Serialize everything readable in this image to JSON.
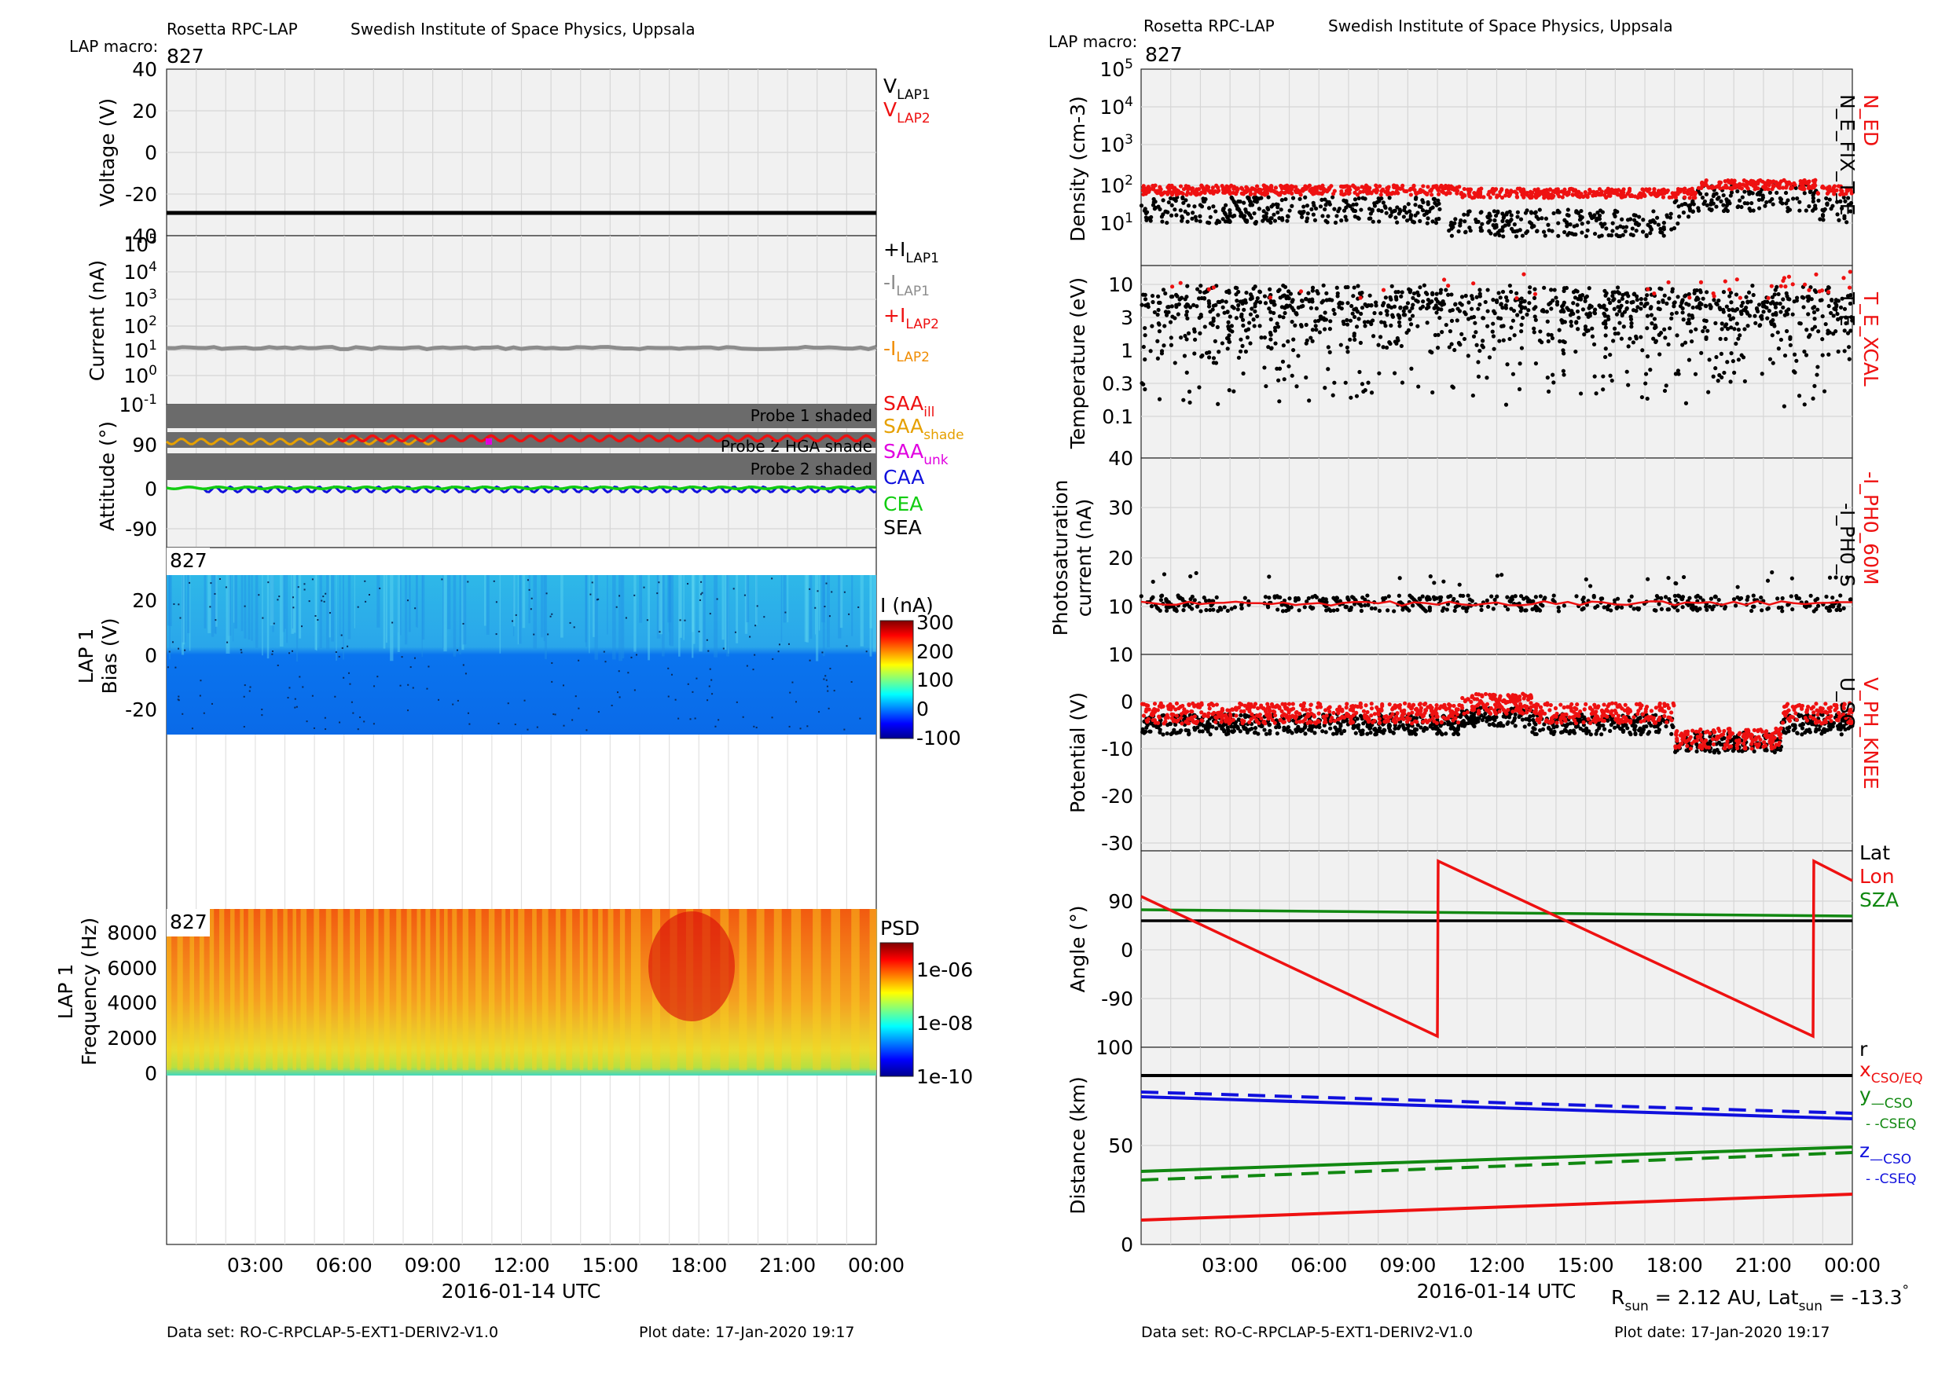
{
  "left": {
    "header": {
      "title": "Rosetta RPC-LAP",
      "institute": "Swedish Institute of Space Physics, Uppsala",
      "macro_label": "LAP macro:",
      "macro_value": "827"
    },
    "x_ticks": [
      "03:00",
      "06:00",
      "09:00",
      "12:00",
      "15:00",
      "18:00",
      "21:00",
      "00:00"
    ],
    "x_label": "2016-01-14 UTC",
    "footer": {
      "dataset": "Data set: RO-C-RPCLAP-5-EXT1-DERIV2-V1.0",
      "plotdate": "Plot date: 17-Jan-2020 19:17"
    },
    "voltage": {
      "ylabel": "Voltage (V)",
      "ticks": [
        "40",
        "20",
        "0",
        "-20",
        "-40"
      ],
      "legend": [
        {
          "base": "V",
          "sub": "LAP1",
          "color": "#000000"
        },
        {
          "base": "V",
          "sub": "LAP2",
          "color": "#ee1111"
        }
      ],
      "value": -30
    },
    "current": {
      "ylabel": "Current (nA)",
      "ticks": [
        {
          "b": "10",
          "e": "5"
        },
        {
          "b": "10",
          "e": "4"
        },
        {
          "b": "10",
          "e": "3"
        },
        {
          "b": "10",
          "e": "2"
        },
        {
          "b": "10",
          "e": "1"
        },
        {
          "b": "10",
          "e": "0"
        },
        {
          "b": "10",
          "e": "-1"
        }
      ],
      "legend": [
        {
          "base": "+I",
          "sub": "LAP1",
          "color": "#000000"
        },
        {
          "base": "-I",
          "sub": "LAP1",
          "color": "#8c8c8c"
        },
        {
          "base": "+I",
          "sub": "LAP2",
          "color": "#ee1111"
        },
        {
          "base": "-I",
          "sub": "LAP2",
          "color": "#f08c00"
        }
      ],
      "value": 10
    },
    "attitude": {
      "ylabel": "Attitude (°)",
      "ticks": [
        "90",
        "0",
        "-90"
      ],
      "bands": [
        "Probe 1 shaded",
        "Probe 2 HGA shade",
        "Probe 2 shaded"
      ],
      "legend": [
        {
          "base": "SAA",
          "sub": "ill",
          "color": "#ee1111"
        },
        {
          "base": "SAA",
          "sub": "shade",
          "color": "#e6a000"
        },
        {
          "base": "SAA",
          "sub": "unk",
          "color": "#e000e0"
        },
        {
          "base": "CAA",
          "sub": "",
          "color": "#1010dd"
        },
        {
          "base": "CEA",
          "sub": "",
          "color": "#11cc11"
        },
        {
          "base": "SEA",
          "sub": "",
          "color": "#000000"
        }
      ]
    },
    "bias": {
      "macro": "827",
      "ylabel1": "LAP 1",
      "ylabel2": "Bias (V)",
      "ticks": [
        "20",
        "0",
        "-20"
      ],
      "cbar_title": "I (nA)",
      "cbar_ticks": [
        "300",
        "200",
        "100",
        "0",
        "-100"
      ]
    },
    "freq": {
      "macro": "827",
      "ylabel1": "LAP 1",
      "ylabel2": "Frequency (Hz)",
      "ticks": [
        "8000",
        "6000",
        "4000",
        "2000",
        "0"
      ],
      "cbar_title": "PSD",
      "cbar_ticks": [
        "1e-06",
        "1e-08",
        "1e-10"
      ]
    }
  },
  "right": {
    "header": {
      "title": "Rosetta RPC-LAP",
      "institute": "Swedish Institute of Space Physics, Uppsala",
      "macro_label": "LAP macro:",
      "macro_value": "827"
    },
    "x_ticks": [
      "03:00",
      "06:00",
      "09:00",
      "12:00",
      "15:00",
      "18:00",
      "21:00",
      "00:00"
    ],
    "x_label": "2016-01-14 UTC",
    "rsun": {
      "r": "R",
      "rsub": "sun",
      "rval": " = 2.12 AU, Lat",
      "lsub": "sun",
      "lval": " = -13.3",
      "deg": "°"
    },
    "footer": {
      "dataset": "Data set: RO-C-RPCLAP-5-EXT1-DERIV2-V1.0",
      "plotdate": "Plot date: 17-Jan-2020 19:17"
    },
    "density": {
      "ylabel": "Density (cm-3)",
      "ticks": [
        {
          "b": "10",
          "e": "5"
        },
        {
          "b": "10",
          "e": "4"
        },
        {
          "b": "10",
          "e": "3"
        },
        {
          "b": "10",
          "e": "2"
        },
        {
          "b": "10",
          "e": "1"
        }
      ],
      "legend_red": "N_ED",
      "legend_black": "N_E_FIX_T_E"
    },
    "temperature": {
      "ylabel": "Temperature (eV)",
      "ticks": [
        "10",
        "3",
        "1",
        "0.3",
        "0.1"
      ],
      "legend_red": "T_E_XCAL",
      "legend_black": "T_E"
    },
    "photo": {
      "ylabel1": "Photosaturation",
      "ylabel2": "current (nA)",
      "ticks": [
        "40",
        "30",
        "20",
        "10"
      ],
      "legend_red": "-I_PH0_60M",
      "legend_black": "-I_PH0_S"
    },
    "potential": {
      "ylabel": "Potential (V)",
      "ticks": [
        "10",
        "0",
        "-10",
        "-20",
        "-30"
      ],
      "legend_red": "V_PH_KNEE",
      "legend_black": "U_SC"
    },
    "angle": {
      "ylabel": "Angle (°)",
      "ticks": [
        "90",
        "0",
        "-90",
        "100"
      ],
      "legend": [
        {
          "t": "Lat",
          "color": "#000000"
        },
        {
          "t": "Lon",
          "color": "#ee1111"
        },
        {
          "t": "SZA",
          "color": "#118811"
        }
      ]
    },
    "distance": {
      "ylabel": "Distance (km)",
      "ticks": [
        "50",
        "0"
      ],
      "legend": {
        "r": "r",
        "x": "x",
        "x_sub": "CSO/EQ",
        "y": "y",
        "y_sub1": "—CSO",
        "y_sub2": "- -CSEQ",
        "z": "z",
        "z_sub1": "—CSO",
        "z_sub2": "- -CSEQ"
      }
    }
  },
  "chart_data": [
    {
      "type": "line",
      "title": "",
      "ylabel": "Voltage (V)",
      "ylim": [
        -40,
        40
      ],
      "series": [
        {
          "name": "V_LAP1",
          "x": [
            0,
            24
          ],
          "y": [
            -30,
            -30
          ]
        }
      ]
    },
    {
      "type": "line",
      "ylabel": "Current (nA)",
      "yscale": "log",
      "ylim": [
        0.1,
        100000
      ],
      "series": [
        {
          "name": "-I_LAP1",
          "x": [
            0,
            6,
            12,
            18,
            24
          ],
          "y": [
            10,
            11,
            11,
            11,
            11
          ]
        }
      ]
    },
    {
      "type": "line",
      "ylabel": "Attitude (°)",
      "series": [
        {
          "name": "SAA",
          "x": [
            0,
            4,
            8,
            10.5,
            16,
            24
          ],
          "y": [
            100,
            105,
            110,
            110,
            112,
            112
          ]
        },
        {
          "name": "CAA",
          "x": [
            0,
            24
          ],
          "y": [
            0,
            2
          ]
        },
        {
          "name": "CEA",
          "x": [
            0,
            24
          ],
          "y": [
            0,
            0
          ]
        }
      ]
    },
    {
      "type": "heatmap",
      "ylabel": "Bias (V)",
      "ylim": [
        -30,
        30
      ],
      "colorbar": "I (nA)",
      "clim": [
        -100,
        300
      ]
    },
    {
      "type": "heatmap",
      "ylabel": "Frequency (Hz)",
      "ylim": [
        0,
        9500
      ],
      "colorbar": "PSD"
    },
    {
      "type": "scatter",
      "ylabel": "Density (cm-3)",
      "yscale": "log",
      "series": [
        {
          "name": "N_ED",
          "x": [
            0,
            3,
            6,
            9,
            12,
            15,
            18,
            21,
            24
          ],
          "y": [
            80,
            85,
            90,
            95,
            75,
            85,
            110,
            100,
            90
          ]
        },
        {
          "name": "N_E_FIX_T_E",
          "x": [
            0,
            3,
            6,
            9,
            12,
            15,
            18,
            21,
            24
          ],
          "y": [
            25,
            20,
            25,
            30,
            15,
            15,
            40,
            30,
            25
          ]
        }
      ]
    },
    {
      "type": "scatter",
      "ylabel": "Temperature (eV)",
      "yscale": "log",
      "series": [
        {
          "name": "T_E",
          "x": [
            0,
            6,
            12,
            18,
            24
          ],
          "y": [
            5,
            5,
            5,
            5,
            5
          ]
        }
      ]
    },
    {
      "type": "scatter",
      "ylabel": "Photosaturation current (nA)",
      "ylim": [
        10,
        40
      ],
      "series": [
        {
          "name": "-I_PH0_S",
          "x": [
            0,
            6,
            12,
            18,
            24
          ],
          "y": [
            12,
            12,
            12,
            12,
            12
          ]
        },
        {
          "name": "-I_PH0_60M",
          "x": [
            0,
            6,
            12,
            18,
            24
          ],
          "y": [
            12,
            12,
            12,
            12,
            12
          ]
        }
      ]
    },
    {
      "type": "scatter",
      "ylabel": "Potential (V)",
      "ylim": [
        -32,
        10
      ],
      "series": [
        {
          "name": "V_PH_KNEE",
          "x": [
            0,
            3,
            6,
            9,
            12,
            15,
            18,
            21,
            24
          ],
          "y": [
            -2,
            -1,
            -2,
            -3,
            0,
            -3,
            -6,
            -4,
            -3
          ]
        },
        {
          "name": "U_SC",
          "x": [
            0,
            3,
            6,
            9,
            12,
            15,
            18,
            21,
            24
          ],
          "y": [
            -4,
            -4,
            -5,
            -6,
            -3,
            -5,
            -9,
            -6,
            -5
          ]
        }
      ]
    },
    {
      "type": "line",
      "ylabel": "Angle (°)",
      "series": [
        {
          "name": "Lat",
          "x": [
            0,
            24
          ],
          "y": [
            60,
            60
          ]
        },
        {
          "name": "Lon",
          "x": [
            0,
            10,
            10,
            22.6,
            22.6,
            24
          ],
          "y": [
            110,
            -180,
            180,
            -180,
            180,
            145
          ]
        },
        {
          "name": "SZA",
          "x": [
            0,
            24
          ],
          "y": [
            75,
            70
          ]
        }
      ]
    },
    {
      "type": "line",
      "ylabel": "Distance (km)",
      "series": [
        {
          "name": "r",
          "x": [
            0,
            24
          ],
          "y": [
            85,
            85
          ]
        },
        {
          "name": "x",
          "x": [
            0,
            24
          ],
          "y": [
            12,
            25
          ]
        },
        {
          "name": "y CSO",
          "x": [
            0,
            24
          ],
          "y": [
            36,
            49
          ]
        },
        {
          "name": "y CSEQ",
          "x": [
            0,
            24
          ],
          "y": [
            32,
            46
          ]
        },
        {
          "name": "z CSO",
          "x": [
            0,
            24
          ],
          "y": [
            76,
            64
          ]
        },
        {
          "name": "z CSEQ",
          "x": [
            0,
            24
          ],
          "y": [
            78,
            66
          ]
        }
      ]
    }
  ]
}
